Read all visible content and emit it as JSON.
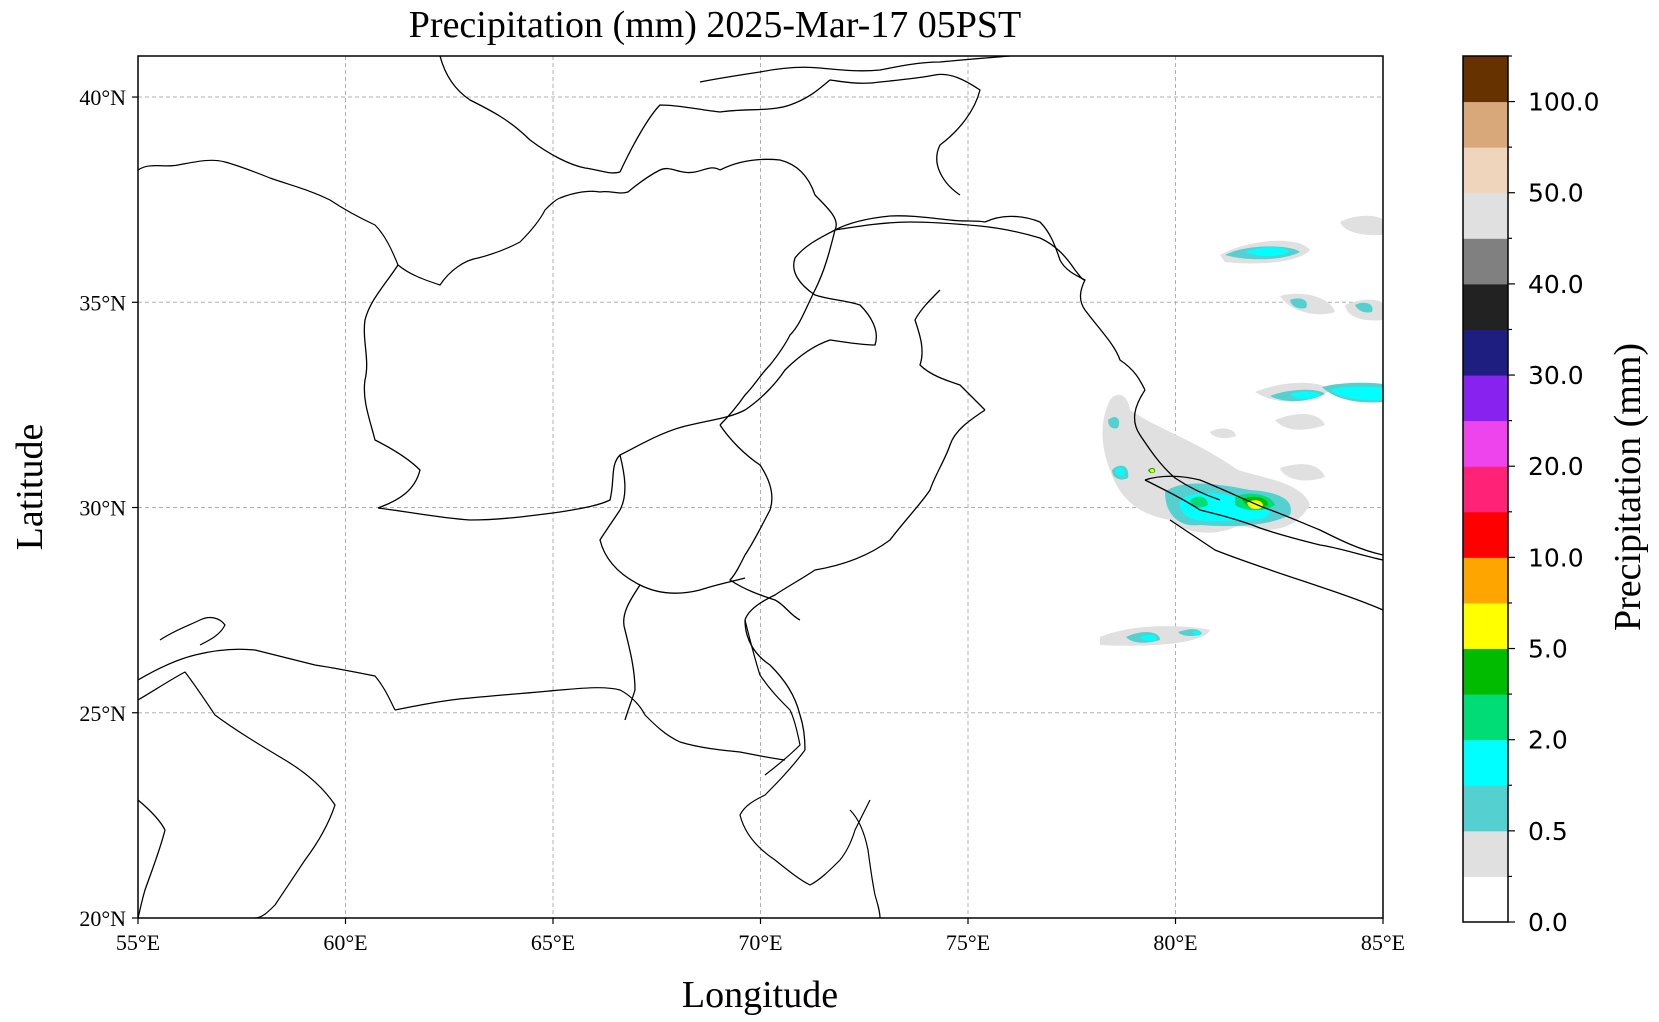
{
  "title": "Precipitation (mm)  2025-Mar-17 05PST",
  "xlabel": "Longitude",
  "ylabel": "Latitude",
  "colorbar_label": "Precipitation (mm)",
  "map_extent": {
    "lon": [
      55,
      85
    ],
    "lat": [
      20,
      41
    ]
  },
  "lon_ticks": [
    {
      "value": 55,
      "label": "55°E"
    },
    {
      "value": 60,
      "label": "60°E"
    },
    {
      "value": 65,
      "label": "65°E"
    },
    {
      "value": 70,
      "label": "70°E"
    },
    {
      "value": 75,
      "label": "75°E"
    },
    {
      "value": 80,
      "label": "80°E"
    },
    {
      "value": 85,
      "label": "85°E"
    }
  ],
  "lat_ticks": [
    {
      "value": 20,
      "label": "20°N"
    },
    {
      "value": 25,
      "label": "25°N"
    },
    {
      "value": 30,
      "label": "30°N"
    },
    {
      "value": 35,
      "label": "35°N"
    },
    {
      "value": 40,
      "label": "40°N"
    }
  ],
  "gridlines": true,
  "colorbar": {
    "colors": [
      "#ffffff",
      "#e0e0e0",
      "#55d0d0",
      "#00ffff",
      "#00dd77",
      "#00bb00",
      "#ffff00",
      "#ffa500",
      "#ff0000",
      "#ff2277",
      "#ee44ee",
      "#8822ee",
      "#1e1e80",
      "#222222",
      "#808080",
      "#e0e0e0",
      "#eed5bb",
      "#d8a87a",
      "#663300"
    ],
    "labels": [
      "0.0",
      "0.5",
      "2.0",
      "5.0",
      "10.0",
      "20.0",
      "30.0",
      "40.0",
      "50.0",
      "100.0"
    ]
  },
  "chart_data": {
    "type": "heatmap",
    "title": "Precipitation (mm)  2025-Mar-17 05PST",
    "xlabel": "Longitude",
    "ylabel": "Latitude",
    "xlim": [
      55,
      85
    ],
    "ylim": [
      20,
      41
    ],
    "precip_regions": [
      {
        "lon": 81.8,
        "lat": 30.0,
        "level": "5.0"
      },
      {
        "lon": 81.3,
        "lat": 29.9,
        "level": "2.0"
      },
      {
        "lon": 80.8,
        "lat": 30.1,
        "level": "2.0"
      },
      {
        "lon": 79.4,
        "lat": 30.7,
        "level": "2.0"
      },
      {
        "lon": 78.6,
        "lat": 31.9,
        "level": "0.5"
      },
      {
        "lon": 81.5,
        "lat": 35.9,
        "level": "2.0"
      },
      {
        "lon": 83.9,
        "lat": 32.6,
        "level": "2.0"
      },
      {
        "lon": 80.0,
        "lat": 26.8,
        "level": "0.5"
      },
      {
        "lon": 84.0,
        "lat": 34.7,
        "level": "0.5"
      }
    ]
  }
}
